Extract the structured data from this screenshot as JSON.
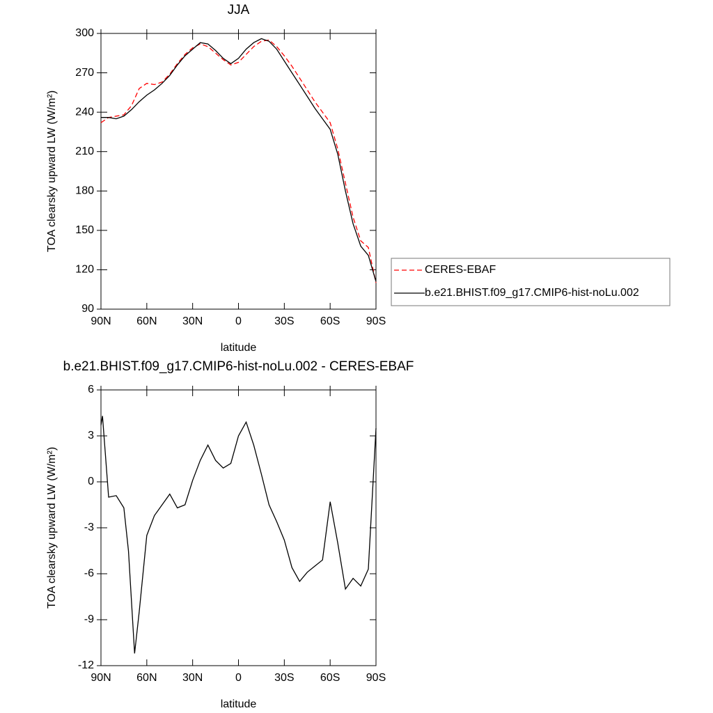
{
  "chart_data": [
    {
      "type": "line",
      "title": "JJA",
      "xlabel": "latitude",
      "ylabel": "TOA clearsky upward LW (W/m²)",
      "x": [
        90,
        85,
        80,
        75,
        70,
        65,
        60,
        55,
        50,
        45,
        40,
        35,
        30,
        25,
        20,
        15,
        10,
        5,
        0,
        -5,
        -10,
        -15,
        -20,
        -25,
        -30,
        -35,
        -40,
        -45,
        -50,
        -55,
        -60,
        -65,
        -70,
        -75,
        -80,
        -85,
        -90
      ],
      "series": [
        {
          "name": "CERES-EBAF",
          "color": "#ff0000",
          "dashed": true,
          "values": [
            232,
            236,
            237,
            238,
            245,
            258,
            262,
            261,
            263,
            269,
            277,
            284,
            289,
            292,
            290,
            285,
            280,
            276,
            278,
            284,
            290,
            294,
            295,
            290,
            283,
            275,
            266,
            257,
            248,
            240,
            232,
            212,
            186,
            160,
            142,
            137,
            110
          ]
        },
        {
          "name": "b.e21.BHIST.f09_g17.CMIP6-hist-noLu.002",
          "color": "#000000",
          "dashed": false,
          "values": [
            236,
            236,
            235,
            237,
            242,
            248,
            253,
            257,
            262,
            268,
            276,
            283,
            288,
            293,
            292,
            287,
            281,
            277,
            281,
            288,
            293,
            296,
            294,
            288,
            279,
            270,
            261,
            252,
            243,
            235,
            227,
            208,
            180,
            155,
            138,
            131,
            111
          ]
        }
      ],
      "xlim": [
        90,
        -90
      ],
      "xticks": [
        {
          "value": 90,
          "label": "90N"
        },
        {
          "value": 60,
          "label": "60N"
        },
        {
          "value": 30,
          "label": "30N"
        },
        0,
        {
          "value": -30,
          "label": "30S"
        },
        {
          "value": -60,
          "label": "60S"
        },
        {
          "value": -90,
          "label": "90S"
        }
      ],
      "ylim": [
        90,
        300
      ],
      "yticks": [
        90,
        120,
        150,
        180,
        210,
        240,
        270,
        300
      ],
      "legend": "right"
    },
    {
      "type": "line",
      "title": "b.e21.BHIST.f09_g17.CMIP6-hist-noLu.002 - CERES-EBAF",
      "xlabel": "latitude",
      "ylabel": "TOA clearsky upward LW (W/m²)",
      "x": [
        90,
        89,
        85,
        80,
        75,
        72,
        68,
        65,
        60,
        55,
        50,
        45,
        40,
        35,
        30,
        25,
        20,
        15,
        10,
        5,
        0,
        -5,
        -10,
        -15,
        -20,
        -25,
        -30,
        -35,
        -40,
        -45,
        -50,
        -55,
        -60,
        -65,
        -70,
        -75,
        -80,
        -85,
        -90
      ],
      "values": [
        3.7,
        4.3,
        -1.0,
        -0.9,
        -1.7,
        -4.5,
        -11.2,
        -8.5,
        -3.5,
        -2.2,
        -1.5,
        -0.8,
        -1.7,
        -1.5,
        0.1,
        1.4,
        2.4,
        1.4,
        0.9,
        1.2,
        3.0,
        3.9,
        2.4,
        0.5,
        -1.5,
        -2.6,
        -3.8,
        -5.6,
        -6.5,
        -5.9,
        -5.5,
        -5.1,
        -1.3,
        -4.0,
        -7.0,
        -6.3,
        -6.8,
        -5.7,
        3.5
      ],
      "color": "#000000",
      "xlim": [
        90,
        -90
      ],
      "xticks": [
        {
          "value": 90,
          "label": "90N"
        },
        {
          "value": 60,
          "label": "60N"
        },
        {
          "value": 30,
          "label": "30N"
        },
        0,
        {
          "value": -30,
          "label": "30S"
        },
        {
          "value": -60,
          "label": "60S"
        },
        {
          "value": -90,
          "label": "90S"
        }
      ],
      "ylim": [
        -12,
        6
      ],
      "yticks": [
        -12,
        -9,
        -6,
        -3,
        0,
        3,
        6
      ]
    }
  ]
}
